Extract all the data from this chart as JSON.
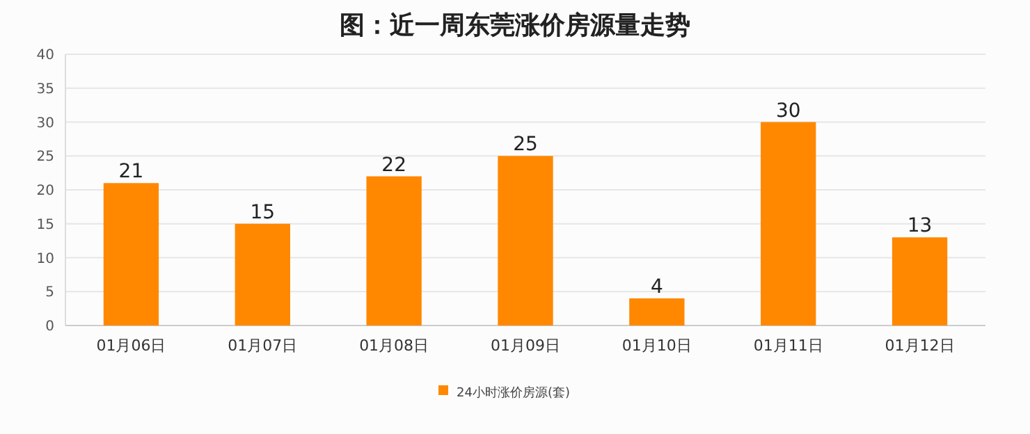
{
  "chart_data": {
    "type": "bar",
    "title": "图：近一周东莞涨价房源量走势",
    "categories": [
      "01月06日",
      "01月07日",
      "01月08日",
      "01月09日",
      "01月10日",
      "01月11日",
      "01月12日"
    ],
    "series": [
      {
        "name": "24小时涨价房源(套)",
        "color": "#ff8800",
        "values": [
          21,
          15,
          22,
          25,
          4,
          30,
          13
        ]
      }
    ],
    "ylim": [
      0,
      40
    ],
    "yticks": [
      0,
      5,
      10,
      15,
      20,
      25,
      30,
      35,
      40
    ],
    "grid": "y",
    "legend": "bottom",
    "data_labels": true
  }
}
